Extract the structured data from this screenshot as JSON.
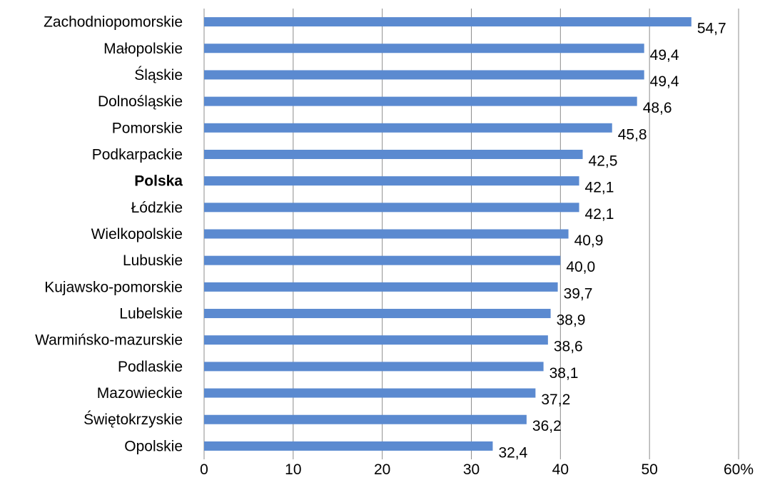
{
  "chart_data": {
    "type": "bar",
    "orientation": "horizontal",
    "categories": [
      "Zachodniopomorskie",
      "Małopolskie",
      "Śląskie",
      "Dolnośląskie",
      "Pomorskie",
      "Podkarpackie",
      "Polska",
      "Łódzkie",
      "Wielkopolskie",
      "Lubuskie",
      "Kujawsko-pomorskie",
      "Lubelskie",
      "Warmińsko-mazurskie",
      "Podlaskie",
      "Mazowieckie",
      "Świętokrzyskie",
      "Opolskie"
    ],
    "values": [
      54.7,
      49.4,
      49.4,
      48.6,
      45.8,
      42.5,
      42.1,
      42.1,
      40.9,
      40.0,
      39.7,
      38.9,
      38.6,
      38.1,
      37.2,
      36.2,
      32.4
    ],
    "data_labels": [
      "54,7",
      "49,4",
      "49,4",
      "48,6",
      "45,8",
      "42,5",
      "42,1",
      "42,1",
      "40,9",
      "40,0",
      "39,7",
      "38,9",
      "38,6",
      "38,1",
      "37,2",
      "36,2",
      "32,4"
    ],
    "highlight_category": "Polska",
    "xlim": [
      0,
      60
    ],
    "x_ticks": [
      "0",
      "10",
      "20",
      "30",
      "40",
      "50",
      "60%"
    ],
    "title": "",
    "xlabel": "",
    "ylabel": "",
    "grid": "vertical",
    "legend": "none",
    "bar_color": "#5b8ad0",
    "grid_color": "#8c8c8c"
  }
}
